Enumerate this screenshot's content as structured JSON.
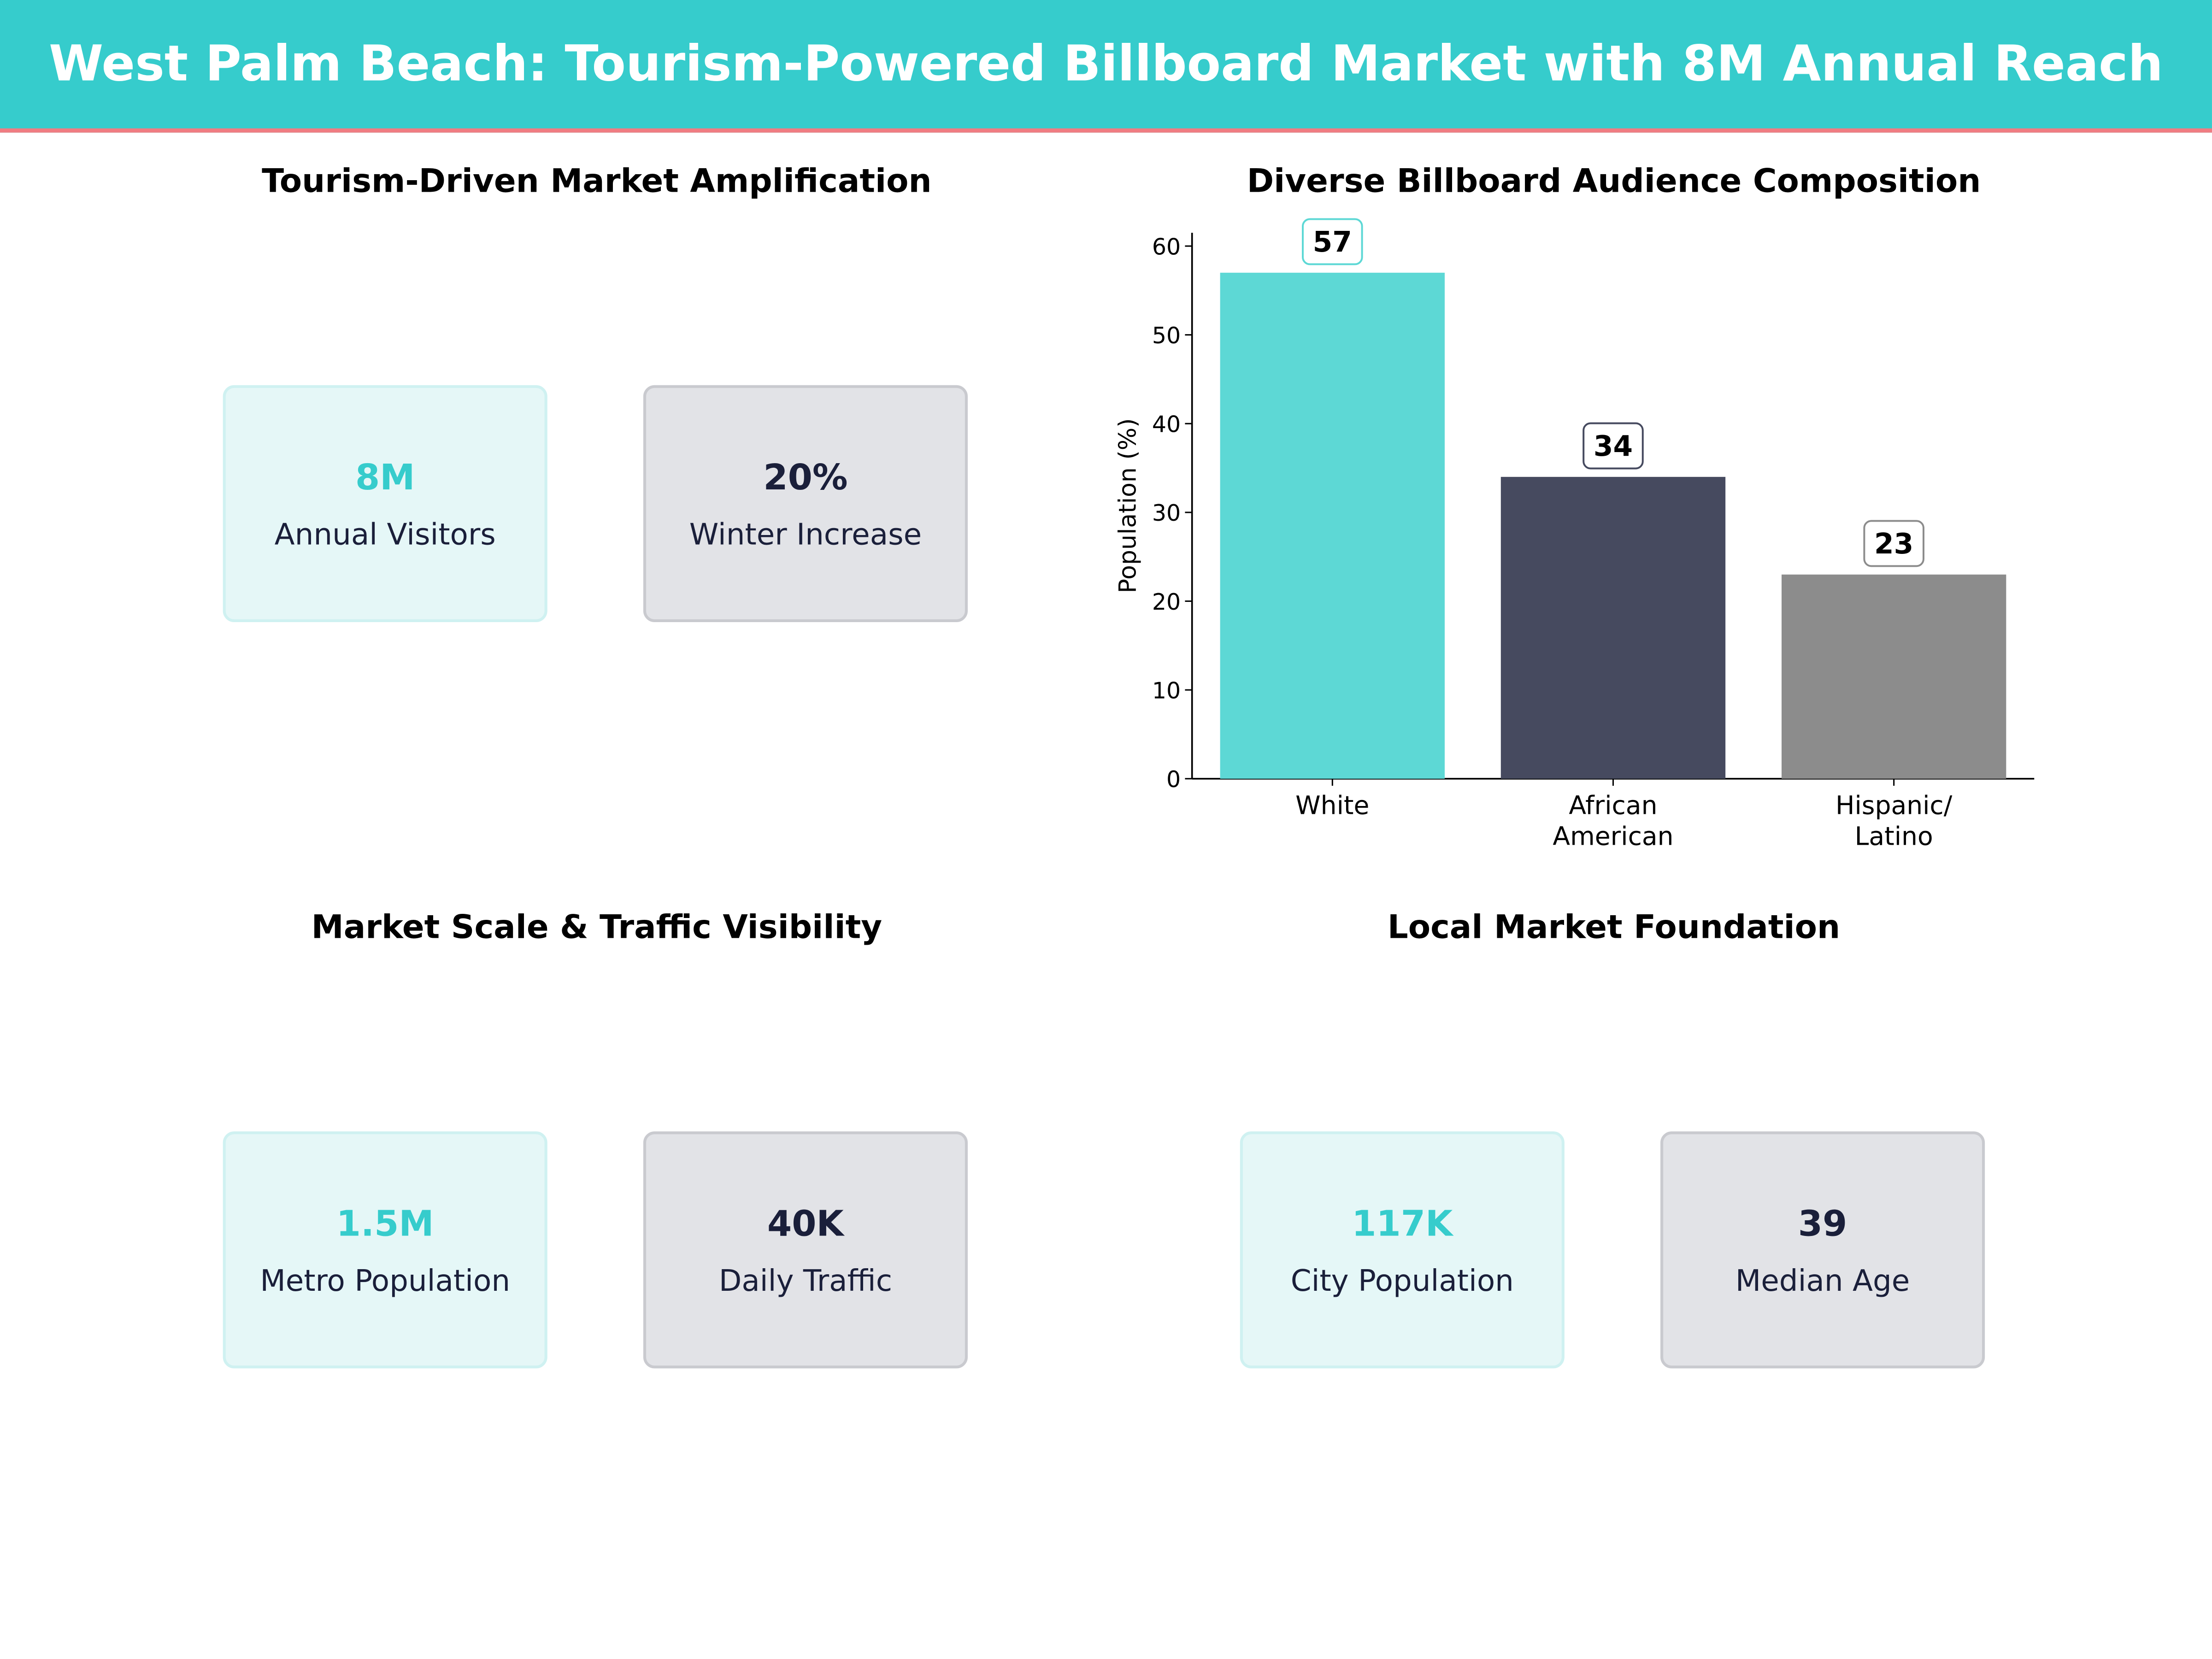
{
  "title": "West Palm Beach: Tourism-Powered Billboard Market with 8M Annual Reach",
  "colors": {
    "header": "#36CCCC",
    "header_underline": "#F07C82",
    "accent": "#36CCCC",
    "dark": "#1A1F3A"
  },
  "panels": {
    "tourism": {
      "title": "Tourism-Driven Market Amplification",
      "cards": [
        {
          "value": "8M",
          "label": "Annual Visitors"
        },
        {
          "value": "20%",
          "label": "Winter Increase"
        }
      ]
    },
    "scale": {
      "title": "Market Scale & Traffic Visibility",
      "cards": [
        {
          "value": "1.5M",
          "label": "Metro Population"
        },
        {
          "value": "40K",
          "label": "Daily Traffic"
        }
      ]
    },
    "local": {
      "title": "Local Market Foundation",
      "cards": [
        {
          "value": "117K",
          "label": "City Population"
        },
        {
          "value": "39",
          "label": "Median Age"
        }
      ]
    }
  },
  "chart_data": {
    "type": "bar",
    "title": "Diverse Billboard Audience Composition",
    "categories": [
      "White",
      "African\nAmerican",
      "Hispanic/\nLatino"
    ],
    "values": [
      57,
      34,
      23
    ],
    "data_labels": [
      "57",
      "34",
      "23"
    ],
    "colors": [
      "#5DD8D5",
      "#464A5F",
      "#8C8C8C"
    ],
    "xlabel": "",
    "ylabel": "Population (%)",
    "ylim": [
      0,
      61.5
    ],
    "yticks": [
      0,
      10,
      20,
      30,
      40,
      50,
      60
    ],
    "grid": false
  }
}
